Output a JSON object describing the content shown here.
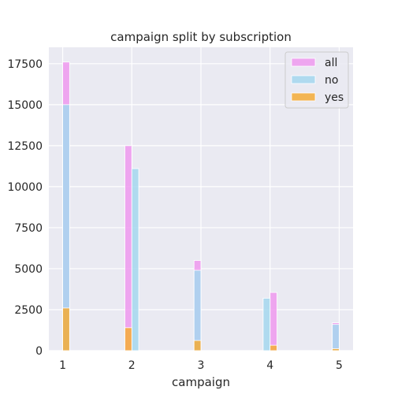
{
  "chart_data": {
    "type": "bar",
    "title": "campaign split by subscription",
    "xlabel": "campaign",
    "ylabel": "",
    "xlim": [
      0.8,
      5.2
    ],
    "ylim": [
      0,
      18500
    ],
    "x_ticks": [
      "1",
      "2",
      "3",
      "4",
      "5"
    ],
    "y_ticks": [
      "0",
      "2500",
      "5000",
      "7500",
      "10000",
      "12500",
      "15000",
      "17500"
    ],
    "y_tick_values": [
      0,
      2500,
      5000,
      7500,
      10000,
      12500,
      15000,
      17500
    ],
    "grid": true,
    "legend_position": "top-right",
    "series": [
      {
        "name": "all",
        "color": "#ee99ee",
        "bins": [
          {
            "x0": 1.0,
            "x1": 1.1,
            "value": 17600
          },
          {
            "x0": 1.9,
            "x1": 2.0,
            "value": 12500
          },
          {
            "x0": 2.9,
            "x1": 3.0,
            "value": 5500
          },
          {
            "x0": 4.0,
            "x1": 4.1,
            "value": 3550
          },
          {
            "x0": 4.9,
            "x1": 5.0,
            "value": 1700
          }
        ]
      },
      {
        "name": "no",
        "color": "#a4d7ee",
        "bins": [
          {
            "x0": 1.0,
            "x1": 1.1,
            "value": 15000
          },
          {
            "x0": 2.0,
            "x1": 2.1,
            "value": 11100
          },
          {
            "x0": 2.9,
            "x1": 3.0,
            "value": 4900
          },
          {
            "x0": 3.9,
            "x1": 4.0,
            "value": 3200
          },
          {
            "x0": 4.9,
            "x1": 5.0,
            "value": 1600
          }
        ]
      },
      {
        "name": "yes",
        "color": "#f5ac37",
        "bins": [
          {
            "x0": 1.0,
            "x1": 1.1,
            "value": 2600
          },
          {
            "x0": 1.9,
            "x1": 2.0,
            "value": 1400
          },
          {
            "x0": 2.9,
            "x1": 3.0,
            "value": 620
          },
          {
            "x0": 4.0,
            "x1": 4.1,
            "value": 330
          },
          {
            "x0": 4.9,
            "x1": 5.0,
            "value": 120
          }
        ]
      }
    ]
  }
}
